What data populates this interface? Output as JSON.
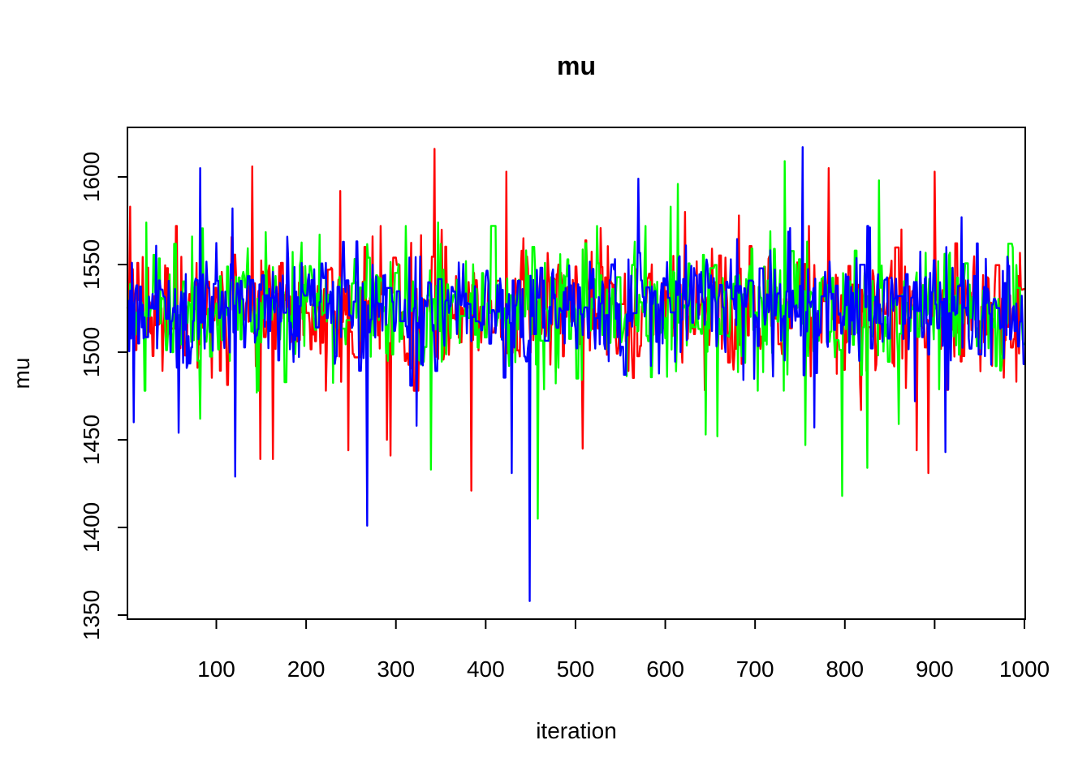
{
  "chart_data": {
    "type": "line",
    "title": "mu",
    "xlabel": "iteration",
    "ylabel": "mu",
    "xlim": [
      1,
      1000
    ],
    "ylim": [
      1350,
      1625
    ],
    "x_ticks": [
      100,
      200,
      300,
      400,
      500,
      600,
      700,
      800,
      900,
      1000
    ],
    "y_ticks": [
      1350,
      1400,
      1450,
      1500,
      1550,
      1600
    ],
    "grid": false,
    "legend": "none",
    "n_iterations": 1000,
    "series_center": 1525,
    "series": [
      {
        "color": "#ff0000",
        "extremes": [
          {
            "x": 4,
            "y": 1583
          },
          {
            "x": 140,
            "y": 1606
          },
          {
            "x": 149,
            "y": 1439
          },
          {
            "x": 163,
            "y": 1439
          },
          {
            "x": 238,
            "y": 1592
          },
          {
            "x": 247,
            "y": 1444
          },
          {
            "x": 290,
            "y": 1450
          },
          {
            "x": 294,
            "y": 1441
          },
          {
            "x": 343,
            "y": 1616
          },
          {
            "x": 384,
            "y": 1421
          },
          {
            "x": 423,
            "y": 1603
          },
          {
            "x": 508,
            "y": 1445
          },
          {
            "x": 622,
            "y": 1580
          },
          {
            "x": 682,
            "y": 1578
          },
          {
            "x": 782,
            "y": 1605
          },
          {
            "x": 818,
            "y": 1467
          },
          {
            "x": 880,
            "y": 1444
          },
          {
            "x": 893,
            "y": 1431
          },
          {
            "x": 900,
            "y": 1603
          }
        ]
      },
      {
        "color": "#00ff00",
        "extremes": [
          {
            "x": 22,
            "y": 1574
          },
          {
            "x": 82,
            "y": 1462
          },
          {
            "x": 145,
            "y": 1477
          },
          {
            "x": 339,
            "y": 1433
          },
          {
            "x": 347,
            "y": 1574
          },
          {
            "x": 458,
            "y": 1405
          },
          {
            "x": 606,
            "y": 1583
          },
          {
            "x": 614,
            "y": 1596
          },
          {
            "x": 645,
            "y": 1453
          },
          {
            "x": 658,
            "y": 1452
          },
          {
            "x": 733,
            "y": 1609
          },
          {
            "x": 756,
            "y": 1447
          },
          {
            "x": 797,
            "y": 1418
          },
          {
            "x": 825,
            "y": 1434
          },
          {
            "x": 838,
            "y": 1598
          },
          {
            "x": 860,
            "y": 1459
          }
        ]
      },
      {
        "color": "#0000ff",
        "extremes": [
          {
            "x": 6,
            "y": 1551
          },
          {
            "x": 8,
            "y": 1460
          },
          {
            "x": 58,
            "y": 1454
          },
          {
            "x": 82,
            "y": 1605
          },
          {
            "x": 118,
            "y": 1582
          },
          {
            "x": 121,
            "y": 1429
          },
          {
            "x": 268,
            "y": 1401
          },
          {
            "x": 323,
            "y": 1458
          },
          {
            "x": 429,
            "y": 1431
          },
          {
            "x": 449,
            "y": 1358
          },
          {
            "x": 570,
            "y": 1599
          },
          {
            "x": 753,
            "y": 1617
          },
          {
            "x": 766,
            "y": 1457
          },
          {
            "x": 878,
            "y": 1472
          },
          {
            "x": 912,
            "y": 1443
          },
          {
            "x": 930,
            "y": 1577
          }
        ]
      }
    ]
  }
}
